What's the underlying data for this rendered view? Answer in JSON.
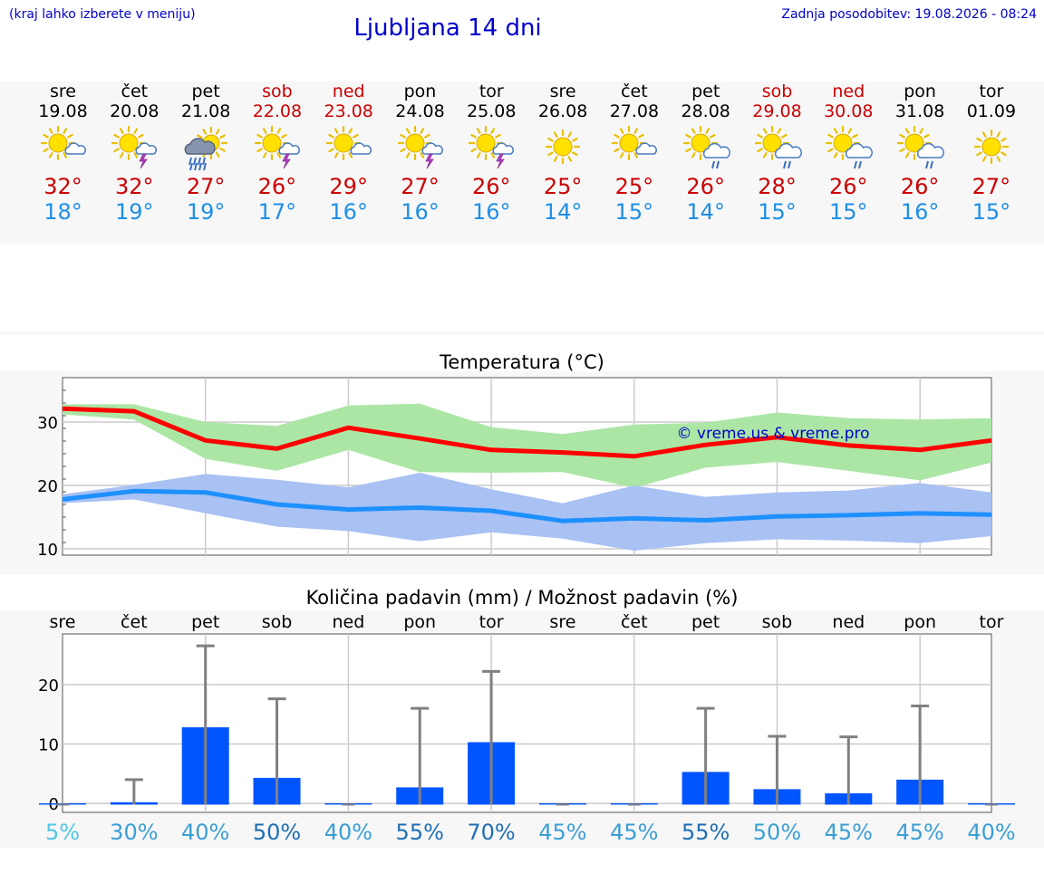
{
  "header": {
    "note_left": "(kraj lahko izberete v meniju)",
    "title": "Ljubljana 14 dni",
    "note_right": "Zadnja posodobitev: 19.08.2026 - 08:24"
  },
  "colors": {
    "link_blue": "#0000cc",
    "max_temp_red": "#cc0000",
    "min_temp_blue": "#1e8fe6",
    "max_line": "#ff0000",
    "max_band": "#abe6a5",
    "min_line": "#1e90ff",
    "min_band": "#a9c1f3",
    "precip_bar": "#0055ff",
    "errorbar": "#808080"
  },
  "days": [
    {
      "name": "sre",
      "date": "19.08",
      "weekend": false,
      "icon": "sun-cloud-icon",
      "max": "32°",
      "min": "18°"
    },
    {
      "name": "čet",
      "date": "20.08",
      "weekend": false,
      "icon": "sun-cloud-thunder-icon",
      "max": "32°",
      "min": "19°"
    },
    {
      "name": "pet",
      "date": "21.08",
      "weekend": false,
      "icon": "sun-rain-cloud-icon",
      "max": "27°",
      "min": "19°"
    },
    {
      "name": "sob",
      "date": "22.08",
      "weekend": true,
      "icon": "sun-cloud-thunder-icon",
      "max": "26°",
      "min": "17°"
    },
    {
      "name": "ned",
      "date": "23.08",
      "weekend": true,
      "icon": "sun-cloud-icon",
      "max": "29°",
      "min": "16°"
    },
    {
      "name": "pon",
      "date": "24.08",
      "weekend": false,
      "icon": "sun-cloud-thunder-icon",
      "max": "27°",
      "min": "16°"
    },
    {
      "name": "tor",
      "date": "25.08",
      "weekend": false,
      "icon": "sun-cloud-thunder-icon",
      "max": "26°",
      "min": "16°"
    },
    {
      "name": "sre",
      "date": "26.08",
      "weekend": false,
      "icon": "sun-icon",
      "max": "25°",
      "min": "14°"
    },
    {
      "name": "čet",
      "date": "27.08",
      "weekend": false,
      "icon": "sun-cloud-icon",
      "max": "25°",
      "min": "15°"
    },
    {
      "name": "pet",
      "date": "28.08",
      "weekend": false,
      "icon": "sun-cloud-shower-icon",
      "max": "26°",
      "min": "14°"
    },
    {
      "name": "sob",
      "date": "29.08",
      "weekend": true,
      "icon": "sun-cloud-shower-icon",
      "max": "28°",
      "min": "15°"
    },
    {
      "name": "ned",
      "date": "30.08",
      "weekend": true,
      "icon": "sun-cloud-shower-icon",
      "max": "26°",
      "min": "15°"
    },
    {
      "name": "pon",
      "date": "31.08",
      "weekend": false,
      "icon": "sun-cloud-shower-icon",
      "max": "26°",
      "min": "16°"
    },
    {
      "name": "tor",
      "date": "01.09",
      "weekend": false,
      "icon": "sun-icon",
      "max": "27°",
      "min": "15°"
    }
  ],
  "chart_data": [
    {
      "type": "area",
      "title": "Temperatura (°C)",
      "watermark": "© vreme.us & vreme.pro",
      "ylim": [
        9,
        37
      ],
      "yticks": [
        10,
        20,
        30
      ],
      "grid": true,
      "series": [
        {
          "values": [
            32.1,
            31.7,
            27.1,
            25.8,
            29.1,
            27.4,
            25.6,
            25.2,
            24.6,
            26.4,
            27.6,
            26.3,
            25.6,
            27.1
          ],
          "band_low": [
            31.2,
            30.4,
            24.2,
            22.3,
            25.6,
            22.1,
            22.0,
            22.1,
            19.6,
            22.8,
            23.7,
            22.3,
            20.8,
            23.6
          ],
          "band_high": [
            32.8,
            32.8,
            30.0,
            29.4,
            32.6,
            32.9,
            29.2,
            28.1,
            29.6,
            29.9,
            31.5,
            30.6,
            30.4,
            30.6
          ]
        },
        {
          "values": [
            17.8,
            19.1,
            18.9,
            17.0,
            16.2,
            16.5,
            16.0,
            14.4,
            14.8,
            14.5,
            15.1,
            15.3,
            15.6,
            15.4
          ],
          "band_low": [
            17.2,
            17.8,
            15.6,
            13.5,
            12.8,
            11.2,
            12.6,
            11.6,
            9.7,
            10.9,
            11.5,
            11.3,
            10.9,
            12.0
          ],
          "band_high": [
            18.6,
            20.1,
            21.8,
            20.9,
            19.7,
            22.0,
            19.4,
            17.2,
            20.0,
            18.2,
            18.9,
            19.2,
            20.4,
            18.9
          ]
        }
      ]
    },
    {
      "type": "bar",
      "title": "Količina padavin (mm) / Možnost padavin (%)",
      "categories": [
        "sre",
        "čet",
        "pet",
        "sob",
        "ned",
        "pon",
        "tor",
        "sre",
        "čet",
        "pet",
        "sob",
        "ned",
        "pon",
        "tor"
      ],
      "ylim": [
        -1.5,
        28.5
      ],
      "yticks": [
        0,
        10,
        20
      ],
      "grid": true,
      "values": [
        0,
        0.2,
        12.8,
        4.3,
        0,
        2.7,
        10.3,
        0,
        0,
        5.3,
        2.4,
        1.7,
        4.0,
        0
      ],
      "error_high": [
        0,
        4.0,
        26.5,
        17.6,
        0,
        16.0,
        22.2,
        0,
        0,
        16.0,
        11.3,
        11.2,
        16.4,
        0
      ],
      "probabilities": [
        {
          "label": "5%",
          "color": "#4fc8e8"
        },
        {
          "label": "30%",
          "color": "#3a9fd6"
        },
        {
          "label": "40%",
          "color": "#3a9fd6"
        },
        {
          "label": "50%",
          "color": "#1e6fb4"
        },
        {
          "label": "40%",
          "color": "#3a9fd6"
        },
        {
          "label": "55%",
          "color": "#1e6fb4"
        },
        {
          "label": "70%",
          "color": "#1e6fb4"
        },
        {
          "label": "45%",
          "color": "#3a9fd6"
        },
        {
          "label": "45%",
          "color": "#3a9fd6"
        },
        {
          "label": "55%",
          "color": "#1e6fb4"
        },
        {
          "label": "50%",
          "color": "#3a9fd6"
        },
        {
          "label": "45%",
          "color": "#3a9fd6"
        },
        {
          "label": "45%",
          "color": "#3a9fd6"
        },
        {
          "label": "40%",
          "color": "#3a9fd6"
        }
      ]
    }
  ]
}
